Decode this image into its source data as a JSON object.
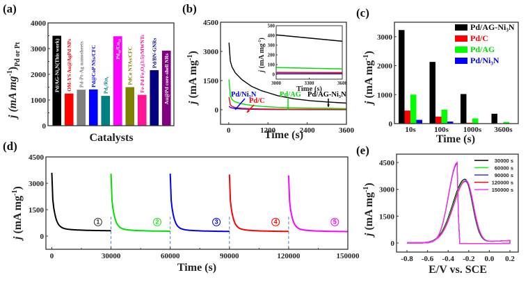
{
  "chart_data": [
    {
      "panel": "(a)",
      "type": "bar",
      "title": "",
      "xlabel": "Catalysts",
      "ylabel": "j (mA mg-1)Pd or Pt",
      "ylabel_main": "j (mA mg",
      "ylabel_sup": "-1",
      "ylabel_close": ")",
      "ylabel_sub": "Pd or Pt",
      "ylim": [
        0,
        4000
      ],
      "yticks": [
        0,
        1000,
        2000,
        3000,
        4000
      ],
      "categories": [
        "Pd/AG-Ni3N(This work)",
        "OM-YS Au@AgPd NPs",
        "Pd-Pt-Ag nanosheets",
        "Pd@CoP NSs/CFC",
        "Pd1/Ru1",
        "Pd40/Cu33",
        "PdCo NTAs/CFC",
        "Fe-Pd Fe3O4(3:5)/MWNTs",
        "Pd/BN-GNRs",
        "Au@Pd core-shell NRs"
      ],
      "values": [
        3500,
        1250,
        1400,
        1410,
        1160,
        3480,
        1500,
        1200,
        2160,
        2920
      ],
      "colors": [
        "#000000",
        "#ff0000",
        "#808080",
        "#0000ff",
        "#008080",
        "#ff00ff",
        "#808000",
        "#ff1493",
        "#000080",
        "#800080"
      ],
      "label_colors": [
        "#ffffff",
        "#ff0000",
        "#808080",
        "#0000ff",
        "#008080",
        "#ffffff",
        "#808000",
        "#ff1493",
        "#000080",
        "#ffffff"
      ]
    },
    {
      "panel": "(b)",
      "type": "line",
      "xlabel": "Time (s)",
      "ylabel": "j (mA mg-1)",
      "xlim": [
        0,
        3600
      ],
      "ylim": [
        -750,
        4500
      ],
      "xticks": [
        0,
        1200,
        2400,
        3600
      ],
      "yticks": [
        0,
        1500,
        3000,
        4500
      ],
      "series": [
        {
          "name": "Pd/AG-Ni3N",
          "color": "#000000",
          "x": [
            10,
            50,
            100,
            200,
            400,
            700,
            1000,
            1500,
            2000,
            2500,
            3000,
            3600
          ],
          "y": [
            3450,
            2500,
            2200,
            1900,
            1550,
            1200,
            980,
            720,
            560,
            460,
            400,
            340
          ]
        },
        {
          "name": "Pd/AG",
          "color": "#00e000",
          "x": [
            10,
            50,
            100,
            200,
            400,
            700,
            1000,
            1500,
            2000,
            2500,
            3000,
            3600
          ],
          "y": [
            1550,
            700,
            520,
            400,
            300,
            220,
            170,
            120,
            95,
            80,
            70,
            55
          ]
        },
        {
          "name": "Pd/C",
          "color": "#ff0000",
          "x": [
            10,
            50,
            100,
            200,
            400,
            700,
            1000,
            1500,
            2000,
            2500,
            3000,
            3600
          ],
          "y": [
            650,
            250,
            170,
            110,
            70,
            50,
            40,
            30,
            25,
            22,
            20,
            18
          ]
        },
        {
          "name": "Pd/Ni3N",
          "color": "#0000ff",
          "x": [
            10,
            50,
            100,
            200,
            400,
            700,
            1000,
            1500,
            2000,
            2500,
            3000,
            3600
          ],
          "y": [
            180,
            120,
            90,
            60,
            40,
            25,
            18,
            12,
            10,
            8,
            6,
            5
          ]
        }
      ],
      "annotations": [
        "Pd/Ni3N",
        "Pd/C",
        "Pd/AG",
        "Pd/AG-Ni3N"
      ],
      "inset": {
        "xlabel": "Time (s)",
        "ylabel": "j (mA mg-1)",
        "xlim": [
          3000,
          3600
        ],
        "ylim": [
          -50,
          500
        ],
        "xticks": [
          3000,
          3300,
          3600
        ],
        "yticks": [
          0,
          100,
          200,
          300,
          400,
          500
        ],
        "series": [
          {
            "name": "Pd/AG-Ni3N",
            "color": "#000000",
            "x": [
              3000,
              3600
            ],
            "y": [
              405,
              340
            ]
          },
          {
            "name": "Pd/AG",
            "color": "#00e000",
            "x": [
              3000,
              3600
            ],
            "y": [
              70,
              55
            ]
          },
          {
            "name": "Pd/C",
            "color": "#ff0000",
            "x": [
              3000,
              3600
            ],
            "y": [
              20,
              18
            ]
          },
          {
            "name": "Pd/Ni3N",
            "color": "#0000ff",
            "x": [
              3000,
              3600
            ],
            "y": [
              6,
              5
            ]
          }
        ]
      }
    },
    {
      "panel": "(c)",
      "type": "bar",
      "xlabel": "Time (s)",
      "ylabel": "j (mA mg-1)",
      "ylim": [
        0,
        3500
      ],
      "yticks": [
        0,
        1000,
        2000,
        3000
      ],
      "categories": [
        "10s",
        "100s",
        "1000s",
        "3600s"
      ],
      "series": [
        {
          "name": "Pd/AG-Ni3N",
          "color": "#000000",
          "values": [
            3230,
            2130,
            1020,
            340
          ]
        },
        {
          "name": "Pd/C",
          "color": "#ff0000",
          "values": [
            450,
            240,
            30,
            10
          ]
        },
        {
          "name": "Pd/AG",
          "color": "#00ff00",
          "values": [
            1000,
            480,
            180,
            60
          ]
        },
        {
          "name": "Pd/Ni3N",
          "color": "#0000ff",
          "values": [
            130,
            70,
            10,
            5
          ]
        }
      ],
      "legend": [
        "Pd/AG-Ni3N",
        "Pd/C",
        "Pd/AG",
        "Pd/Ni3N"
      ],
      "legend_placement": "top-right"
    },
    {
      "panel": "(d)",
      "type": "line",
      "xlabel": "Time (s)",
      "ylabel": "j (mA mg-1)",
      "xlim": [
        -3000,
        150000
      ],
      "ylim": [
        -750,
        4500
      ],
      "xticks": [
        0,
        30000,
        60000,
        90000,
        120000,
        150000
      ],
      "yticks": [
        0,
        1500,
        3000,
        4500
      ],
      "cycle_length": 30000,
      "cycles": [
        {
          "label": "①",
          "color": "#000000",
          "start": 0,
          "peak": 3400,
          "end": 300
        },
        {
          "label": "②",
          "color": "#00e000",
          "start": 30000,
          "peak": 3350,
          "end": 270
        },
        {
          "label": "③",
          "color": "#0000ff",
          "start": 60000,
          "peak": 3350,
          "end": 260
        },
        {
          "label": "④",
          "color": "#ff0000",
          "start": 90000,
          "peak": 3300,
          "end": 260
        },
        {
          "label": "⑤",
          "color": "#ff00ff",
          "start": 120000,
          "peak": 3250,
          "end": 250
        }
      ],
      "divider_color": "#4a7fd0",
      "divider_x": [
        30000,
        60000,
        90000,
        120000
      ]
    },
    {
      "panel": "(e)",
      "type": "line",
      "xlabel": "E/V vs. SCE",
      "ylabel": "j (mA mg-1)",
      "xlim": [
        -0.9,
        0.25
      ],
      "ylim": [
        -500,
        5000
      ],
      "xticks": [
        -0.8,
        -0.6,
        -0.4,
        -0.2,
        0.0,
        0.2
      ],
      "yticks": [
        0,
        1500,
        3000,
        4500
      ],
      "series": [
        {
          "name": "30000 s",
          "color": "#000000",
          "forward_peak": 3550,
          "backward_peak": 4450
        },
        {
          "name": "60000 s",
          "color": "#00ff00",
          "forward_peak": 3480,
          "backward_peak": 4450
        },
        {
          "name": "90000 s",
          "color": "#3333ff",
          "forward_peak": 3420,
          "backward_peak": 4450
        },
        {
          "name": "120000 s",
          "color": "#ff0000",
          "forward_peak": 3470,
          "backward_peak": 4500
        },
        {
          "name": "150000 s",
          "color": "#ff33ff",
          "forward_peak": 3470,
          "backward_peak": 4520
        }
      ],
      "forward_peak_potential": -0.23,
      "backward_peak_potential": -0.31,
      "legend_placement": "top-right"
    }
  ]
}
